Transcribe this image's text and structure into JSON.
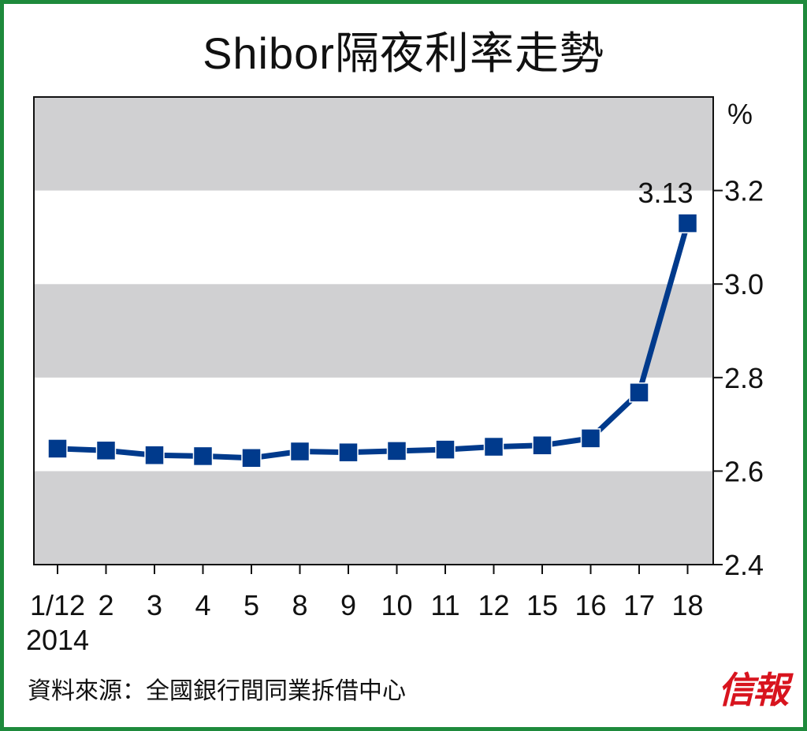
{
  "colors": {
    "frame": "#1e8a3c",
    "band_gray": "#d0d0d2",
    "band_white": "#ffffff",
    "series": "#003a8c",
    "brand": "#d8141e",
    "text": "#111111"
  },
  "source_note": "資料來源：全國銀行間同業拆借中心",
  "brand_logo": "信報",
  "chart_data": {
    "type": "line",
    "title": "Shibor隔夜利率走勢",
    "unit": "%",
    "categories": [
      "1/12",
      "2",
      "3",
      "4",
      "5",
      "8",
      "9",
      "10",
      "11",
      "12",
      "15",
      "16",
      "17",
      "18"
    ],
    "year_label": "2014",
    "series": [
      {
        "values": [
          2.648,
          2.644,
          2.634,
          2.632,
          2.628,
          2.642,
          2.64,
          2.643,
          2.646,
          2.652,
          2.655,
          2.67,
          2.768,
          3.13
        ],
        "marker": "square"
      }
    ],
    "annotations": [
      {
        "category": "18",
        "text": "3.13"
      }
    ],
    "yaxis": {
      "position": "right",
      "ylim": [
        2.4,
        3.4
      ],
      "ticks": [
        2.4,
        2.6,
        2.8,
        3.0,
        3.2
      ],
      "tick_labels": [
        "2.4",
        "2.6",
        "2.8",
        "3.0",
        "3.2"
      ]
    },
    "background_bands": true,
    "grid": false,
    "legend": "none"
  }
}
